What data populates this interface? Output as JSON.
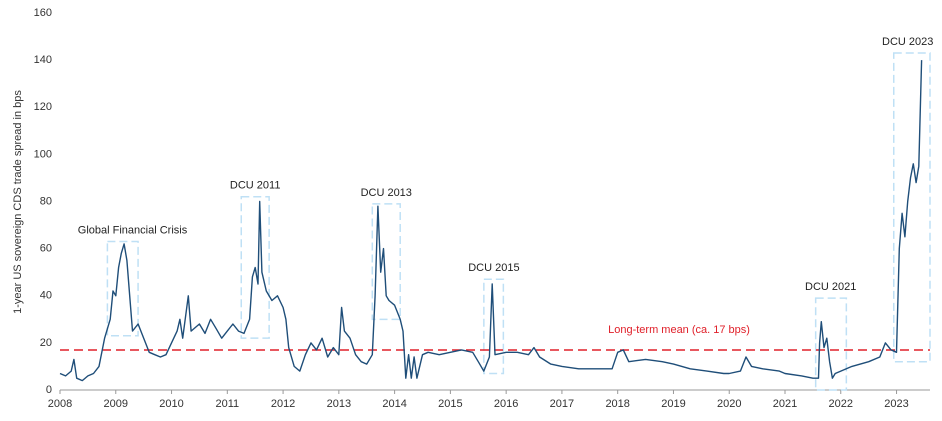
{
  "chart_data": {
    "type": "line",
    "y_label": "1-year US sovereign CDS trade spread in bps",
    "x": [
      2008.0,
      2008.1,
      2008.2,
      2008.25,
      2008.3,
      2008.4,
      2008.5,
      2008.6,
      2008.7,
      2008.8,
      2008.9,
      2008.95,
      2009.0,
      2009.05,
      2009.1,
      2009.15,
      2009.2,
      2009.25,
      2009.3,
      2009.4,
      2009.5,
      2009.6,
      2009.7,
      2009.8,
      2009.9,
      2010.0,
      2010.1,
      2010.15,
      2010.2,
      2010.3,
      2010.35,
      2010.5,
      2010.6,
      2010.7,
      2010.8,
      2010.9,
      2011.0,
      2011.1,
      2011.2,
      2011.3,
      2011.4,
      2011.45,
      2011.5,
      2011.55,
      2011.58,
      2011.62,
      2011.7,
      2011.8,
      2011.9,
      2012.0,
      2012.05,
      2012.1,
      2012.2,
      2012.3,
      2012.4,
      2012.5,
      2012.6,
      2012.7,
      2012.8,
      2012.9,
      2013.0,
      2013.05,
      2013.1,
      2013.2,
      2013.3,
      2013.4,
      2013.5,
      2013.6,
      2013.65,
      2013.7,
      2013.75,
      2013.8,
      2013.85,
      2013.9,
      2014.0,
      2014.1,
      2014.15,
      2014.2,
      2014.25,
      2014.3,
      2014.35,
      2014.4,
      2014.5,
      2014.6,
      2014.8,
      2015.0,
      2015.2,
      2015.4,
      2015.5,
      2015.6,
      2015.7,
      2015.75,
      2015.8,
      2016.0,
      2016.2,
      2016.4,
      2016.5,
      2016.6,
      2016.8,
      2017.0,
      2017.3,
      2017.6,
      2017.9,
      2018.0,
      2018.1,
      2018.2,
      2018.5,
      2018.8,
      2019.0,
      2019.3,
      2019.6,
      2019.9,
      2020.0,
      2020.2,
      2020.3,
      2020.4,
      2020.6,
      2020.9,
      2021.0,
      2021.3,
      2021.5,
      2021.6,
      2021.62,
      2021.65,
      2021.7,
      2021.75,
      2021.8,
      2021.85,
      2021.9,
      2022.0,
      2022.2,
      2022.5,
      2022.7,
      2022.8,
      2022.9,
      2023.0,
      2023.05,
      2023.1,
      2023.15,
      2023.2,
      2023.25,
      2023.3,
      2023.35,
      2023.4,
      2023.45
    ],
    "series": [
      {
        "name": "1-year US sovereign CDS",
        "color": "#1f4e79",
        "values": [
          7,
          6,
          8,
          13,
          5,
          4,
          6,
          7,
          10,
          22,
          30,
          42,
          40,
          52,
          58,
          62,
          55,
          40,
          25,
          28,
          22,
          16,
          15,
          14,
          15,
          20,
          25,
          30,
          22,
          40,
          25,
          28,
          24,
          30,
          26,
          22,
          25,
          28,
          25,
          24,
          30,
          48,
          52,
          45,
          80,
          50,
          42,
          38,
          40,
          35,
          30,
          18,
          10,
          8,
          15,
          20,
          17,
          22,
          14,
          18,
          15,
          35,
          25,
          22,
          15,
          12,
          11,
          15,
          40,
          78,
          50,
          60,
          40,
          38,
          36,
          30,
          25,
          5,
          15,
          5,
          14,
          5,
          15,
          16,
          15,
          16,
          17,
          16,
          12,
          8,
          14,
          45,
          15,
          16,
          16,
          15,
          18,
          14,
          11,
          10,
          9,
          9,
          9,
          16,
          17,
          12,
          13,
          12,
          11,
          9,
          8,
          7,
          7,
          8,
          14,
          10,
          9,
          8,
          7,
          6,
          5,
          5,
          20,
          29,
          18,
          22,
          12,
          5,
          7,
          8,
          10,
          12,
          14,
          20,
          17,
          16,
          60,
          75,
          65,
          80,
          90,
          96,
          88,
          95,
          140
        ]
      }
    ],
    "mean": {
      "value": 17,
      "label": "Long-term mean (ca. 17 bps)",
      "color": "#e0202a"
    },
    "annotations": [
      "Global Financial Crisis",
      "DCU 2011",
      "DCU 2013",
      "DCU 2015",
      "DCU 2021",
      "DCU 2023"
    ],
    "xlim": [
      2008,
      2023.6
    ],
    "xticks": [
      2008,
      2009,
      2010,
      2011,
      2012,
      2013,
      2014,
      2015,
      2016,
      2017,
      2018,
      2019,
      2020,
      2021,
      2022,
      2023
    ],
    "ylim": [
      0,
      160
    ],
    "yticks": [
      0,
      20,
      40,
      60,
      80,
      100,
      120,
      140,
      160
    ]
  }
}
